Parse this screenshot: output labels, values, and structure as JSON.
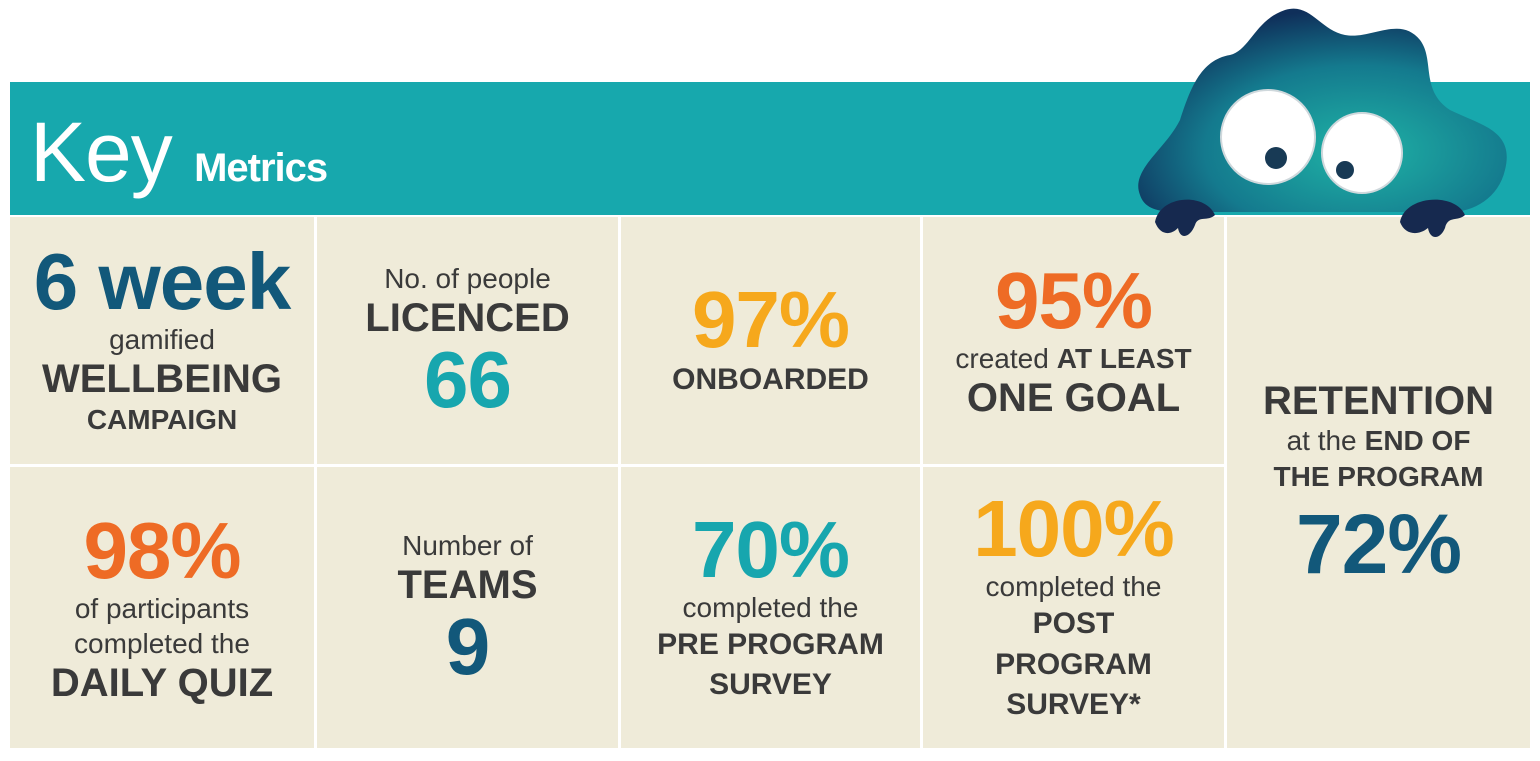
{
  "header": {
    "title_light": "Key",
    "title_bold": "Metrics"
  },
  "cells": [
    [
      [
        "6 week"
      ],
      [
        "gamified"
      ],
      [
        "WELLBEING"
      ],
      [
        "CAMPAIGN"
      ]
    ],
    [
      [
        "No. of people"
      ],
      [
        "LICENCED"
      ],
      [
        "66"
      ]
    ],
    [
      [
        "97%"
      ],
      [
        "ONBOARDED"
      ]
    ],
    [
      [
        "95%"
      ],
      [
        "created",
        "AT LEAST"
      ],
      [
        "ONE GOAL"
      ]
    ],
    [
      [
        "RETENTION"
      ],
      [
        "at the",
        "END OF"
      ],
      [
        "THE PROGRAM"
      ],
      [
        "72%"
      ]
    ],
    [
      [
        "98%"
      ],
      [
        "of participants"
      ],
      [
        "completed the"
      ],
      [
        "DAILY QUIZ"
      ]
    ],
    [
      [
        "Number of"
      ],
      [
        "TEAMS"
      ],
      [
        "9"
      ]
    ],
    [
      [
        "70%"
      ],
      [
        "completed the"
      ],
      [
        "PRE PROGRAM"
      ],
      [
        "SURVEY"
      ]
    ],
    [
      [
        "100%"
      ],
      [
        "completed the"
      ],
      [
        "POST"
      ],
      [
        "PROGRAM"
      ],
      [
        "SURVEY*"
      ]
    ]
  ]
}
